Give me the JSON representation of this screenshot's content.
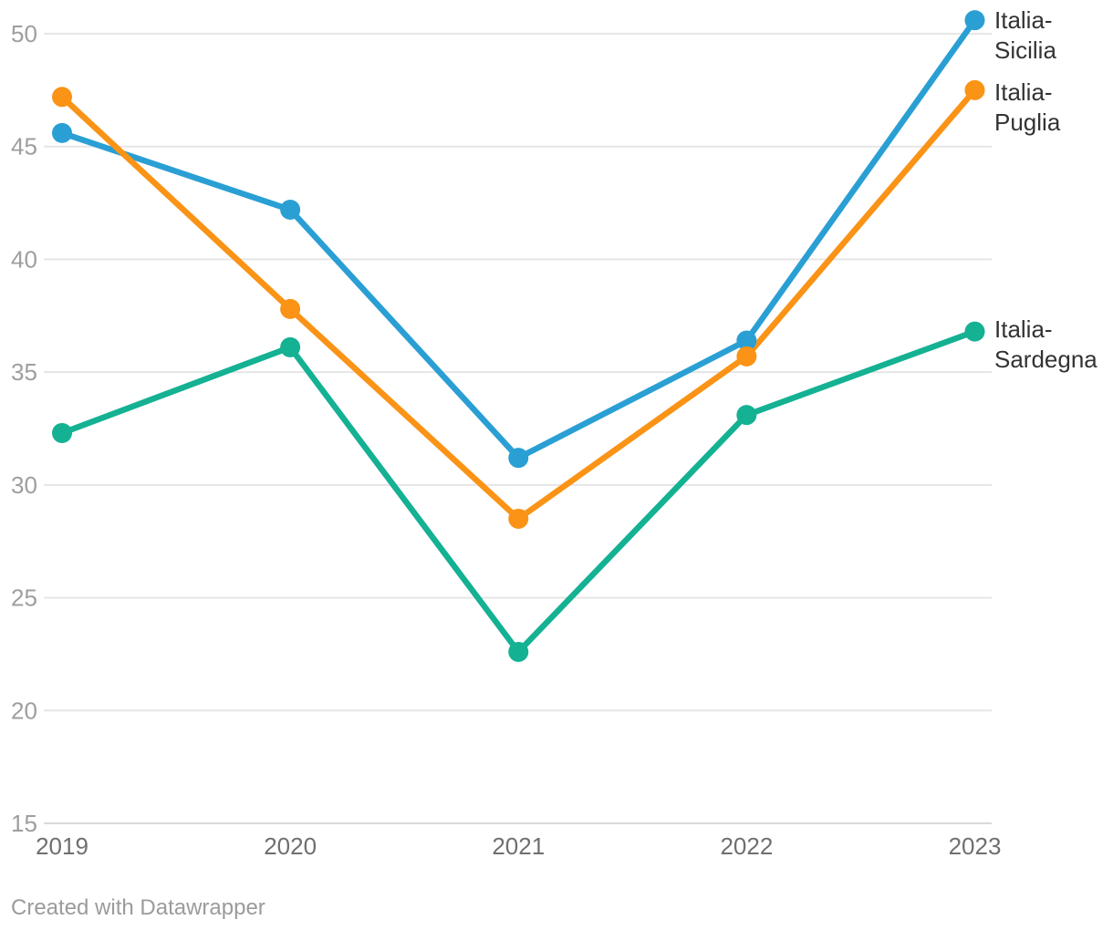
{
  "chart_data": {
    "type": "line",
    "title": "",
    "x": [
      2019,
      2020,
      2021,
      2022,
      2023
    ],
    "x_tick_labels": [
      "2019",
      "2020",
      "2021",
      "2022",
      "2023"
    ],
    "series": [
      {
        "name": "Italia-Sicilia",
        "label_lines": [
          "Italia-",
          "Sicilia"
        ],
        "color": "#2a9fd4",
        "values": [
          45.6,
          42.2,
          31.2,
          36.4,
          50.6
        ]
      },
      {
        "name": "Italia-Puglia",
        "label_lines": [
          "Italia-",
          "Puglia"
        ],
        "color": "#fa9316",
        "values": [
          47.2,
          37.8,
          28.5,
          35.7,
          47.5
        ]
      },
      {
        "name": "Italia-Sardegna",
        "label_lines": [
          "Italia-",
          "Sardegna"
        ],
        "color": "#14b193",
        "values": [
          32.3,
          36.1,
          22.6,
          33.1,
          36.8
        ]
      }
    ],
    "ylim": [
      15,
      50
    ],
    "yticks": [
      15,
      20,
      25,
      30,
      35,
      40,
      45,
      50
    ],
    "ytick_labels": [
      "15",
      "20",
      "25",
      "30",
      "35",
      "40",
      "45",
      "50"
    ],
    "grid": true,
    "legend_position": "right-of-last-point"
  },
  "colors": {
    "gridline": "#e6e6e6",
    "baseline": "#d9d9d9",
    "y_tick_label": "#9e9e9e",
    "x_tick_label": "#6f6f6f",
    "series_label": "#333333",
    "credit": "#9b9b9b",
    "background": "#ffffff"
  },
  "footer": {
    "credit": "Created with Datawrapper"
  }
}
